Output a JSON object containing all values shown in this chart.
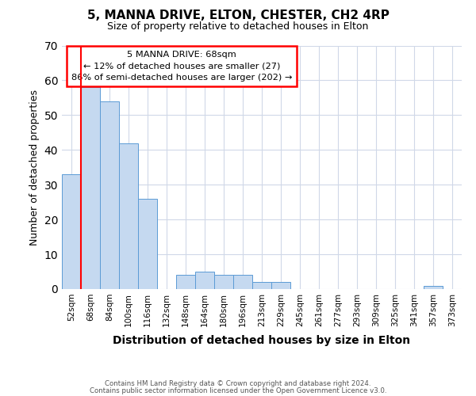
{
  "title": "5, MANNA DRIVE, ELTON, CHESTER, CH2 4RP",
  "subtitle": "Size of property relative to detached houses in Elton",
  "xlabel": "Distribution of detached houses by size in Elton",
  "ylabel": "Number of detached properties",
  "bar_color": "#c5d9f0",
  "bar_edge_color": "#5b9bd5",
  "categories": [
    "52sqm",
    "68sqm",
    "84sqm",
    "100sqm",
    "116sqm",
    "132sqm",
    "148sqm",
    "164sqm",
    "180sqm",
    "196sqm",
    "213sqm",
    "229sqm",
    "245sqm",
    "261sqm",
    "277sqm",
    "293sqm",
    "309sqm",
    "325sqm",
    "341sqm",
    "357sqm",
    "373sqm"
  ],
  "values": [
    33,
    58,
    54,
    42,
    26,
    0,
    4,
    5,
    4,
    4,
    2,
    2,
    0,
    0,
    0,
    0,
    0,
    0,
    0,
    1,
    0
  ],
  "red_line_index": 1,
  "annotation_line1": "5 MANNA DRIVE: 68sqm",
  "annotation_line2": "← 12% of detached houses are smaller (27)",
  "annotation_line3": "86% of semi-detached houses are larger (202) →",
  "ylim": [
    0,
    70
  ],
  "yticks": [
    0,
    10,
    20,
    30,
    40,
    50,
    60,
    70
  ],
  "footer1": "Contains HM Land Registry data © Crown copyright and database right 2024.",
  "footer2": "Contains public sector information licensed under the Open Government Licence v3.0."
}
